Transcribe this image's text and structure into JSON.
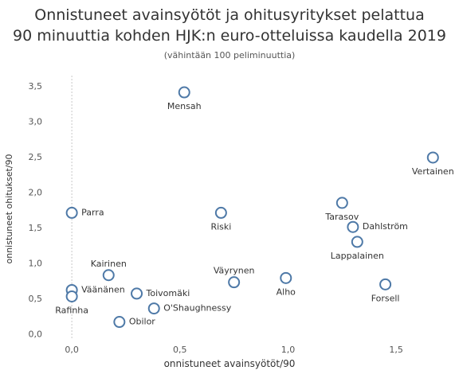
{
  "chart_data": {
    "type": "scatter",
    "title_line1": "Onnistuneet avainsyötöt ja ohitusyritykset pelattua",
    "title_line2": "90 minuuttia kohden HJK:n euro-otteluissa kaudella 2019",
    "subtitle": "(vähintään 100 peliminuuttia)",
    "xlabel": "onnistuneet avainsyötöt/90",
    "ylabel": "onnistuneet ohitukset/90",
    "xlim": [
      -0.1,
      1.75
    ],
    "ylim": [
      -0.05,
      3.6
    ],
    "xticks": [
      0.0,
      0.5,
      1.0,
      1.5
    ],
    "xtick_labels": [
      "0,0",
      "0,5",
      "1,0",
      "1,5"
    ],
    "yticks": [
      0.0,
      0.5,
      1.0,
      1.5,
      2.0,
      2.5,
      3.0,
      3.5
    ],
    "ytick_labels": [
      "0,0",
      "0,5",
      "1,0",
      "1,5",
      "2,0",
      "2,5",
      "3,0",
      "3,5"
    ],
    "grid": false,
    "marker_color": "#4e79a7",
    "points": [
      {
        "name": "Mensah",
        "x": 0.52,
        "y": 3.42,
        "label_pos": "below"
      },
      {
        "name": "Vertainen",
        "x": 1.67,
        "y": 2.5,
        "label_pos": "below"
      },
      {
        "name": "Parra",
        "x": 0.0,
        "y": 1.72,
        "label_pos": "right"
      },
      {
        "name": "Riski",
        "x": 0.69,
        "y": 1.72,
        "label_pos": "below"
      },
      {
        "name": "Tarasov",
        "x": 1.25,
        "y": 1.86,
        "label_pos": "below"
      },
      {
        "name": "Dahlström",
        "x": 1.3,
        "y": 1.52,
        "label_pos": "right"
      },
      {
        "name": "Lappalainen",
        "x": 1.32,
        "y": 1.31,
        "label_pos": "below"
      },
      {
        "name": "Kairinen",
        "x": 0.17,
        "y": 0.84,
        "label_pos": "above"
      },
      {
        "name": "Väyrynen",
        "x": 0.75,
        "y": 0.74,
        "label_pos": "above"
      },
      {
        "name": "Alho",
        "x": 0.99,
        "y": 0.8,
        "label_pos": "below"
      },
      {
        "name": "Forsell",
        "x": 1.45,
        "y": 0.71,
        "label_pos": "below"
      },
      {
        "name": "Väänänen",
        "x": 0.0,
        "y": 0.63,
        "label_pos": "right"
      },
      {
        "name": "Rafinha",
        "x": 0.0,
        "y": 0.54,
        "label_pos": "below"
      },
      {
        "name": "Toivomäki",
        "x": 0.3,
        "y": 0.58,
        "label_pos": "right"
      },
      {
        "name": "O'Shaughnessy",
        "x": 0.38,
        "y": 0.37,
        "label_pos": "right"
      },
      {
        "name": "Obilor",
        "x": 0.22,
        "y": 0.18,
        "label_pos": "right"
      }
    ]
  }
}
